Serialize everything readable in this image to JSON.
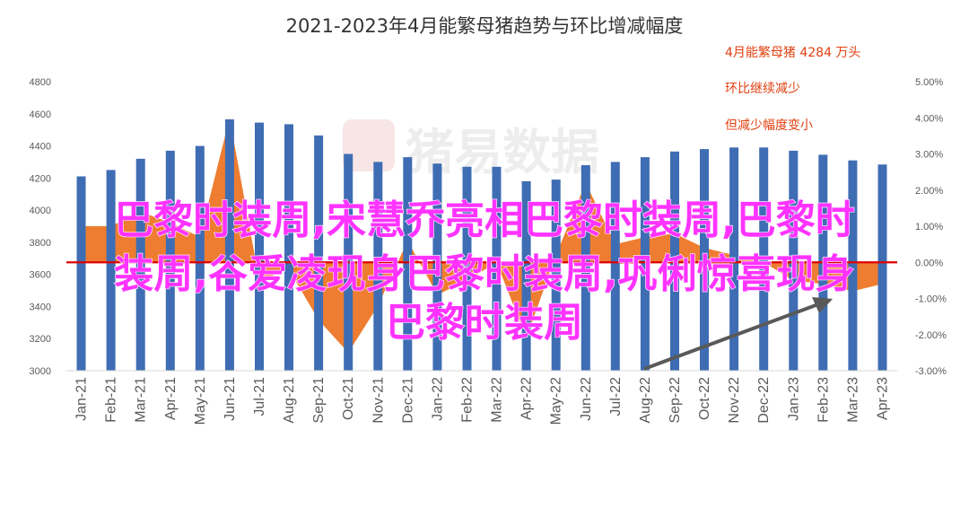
{
  "chart_data": {
    "type": "bar",
    "title": "2021-2023年4月能繁母猪趋势与环比增减幅度",
    "categories": [
      "Jan-21",
      "Feb-21",
      "Mar-21",
      "Apr-21",
      "May-21",
      "Jun-21",
      "Jul-21",
      "Aug-21",
      "Sep-21",
      "Oct-21",
      "Nov-21",
      "Dec-21",
      "Jan-22",
      "Feb-22",
      "Mar-22",
      "Apr-22",
      "May-22",
      "Jun-22",
      "Jul-22",
      "Aug-22",
      "Sep-22",
      "Oct-22",
      "Nov-22",
      "Dec-22",
      "Jan-23",
      "Feb-23",
      "Mar-23",
      "Apr-23"
    ],
    "series": [
      {
        "type": "bar",
        "axis": "left",
        "color": "#3f6db4",
        "values": [
          4210,
          4250,
          4320,
          4370,
          4400,
          4565,
          4545,
          4535,
          4465,
          4350,
          4300,
          4330,
          4290,
          4270,
          4270,
          4180,
          4190,
          4280,
          4300,
          4330,
          4365,
          4380,
          4390,
          4390,
          4370,
          4345,
          4310,
          4284
        ]
      },
      {
        "type": "area",
        "axis": "right",
        "color": "#ee7d31",
        "values": [
          1.0,
          1.0,
          1.4,
          1.1,
          0.7,
          4.0,
          -0.5,
          -0.2,
          -1.6,
          -2.5,
          -1.2,
          0.6,
          -0.9,
          -0.5,
          0.0,
          -2.1,
          0.2,
          2.2,
          0.5,
          0.7,
          0.8,
          0.4,
          0.2,
          0.0,
          -0.5,
          -0.6,
          -0.8,
          -0.6
        ]
      }
    ],
    "left_axis": {
      "ylim": [
        3000,
        4800
      ],
      "ticks": [
        "4800",
        "4600",
        "4400",
        "4200",
        "4000",
        "3800",
        "3600",
        "3400",
        "3200",
        "3000"
      ]
    },
    "right_axis": {
      "ylim": [
        -3,
        5
      ],
      "ticks": [
        "5.00%",
        "4.00%",
        "3.00%",
        "2.00%",
        "1.00%",
        "0.00%",
        "-1.00%",
        "-2.00%",
        "-3.00%"
      ]
    },
    "annotations": [
      "4月能繁母猪 4284 万头",
      "环比继续减少",
      "但减少幅度变小"
    ],
    "zero_line_color": "#dd0000",
    "arrow_color": "#595959",
    "grid": false
  },
  "watermark": "猪易数据",
  "overlay_lines": [
    "巴黎时装周,宋慧乔亮相巴黎时装周,巴黎时",
    "装周,谷爱凌现身巴黎时装周,巩俐惊喜现身",
    "巴黎时装周"
  ]
}
